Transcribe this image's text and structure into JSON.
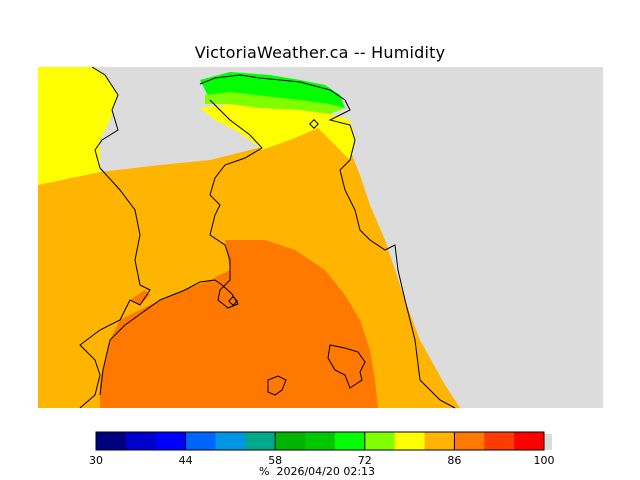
{
  "title": "VictoriaWeather.ca -- Humidity",
  "legend": {
    "unit": "%",
    "timestamp": "2026/04/20 02:13",
    "ticks": [
      "30",
      "44",
      "58",
      "72",
      "86",
      "100"
    ],
    "colors": [
      "#00007f",
      "#0000cd",
      "#0000ff",
      "#0064ff",
      "#0096e6",
      "#00a88c",
      "#00b400",
      "#00c800",
      "#00ff00",
      "#80ff00",
      "#ffff00",
      "#ffb400",
      "#ff7800",
      "#ff3c00",
      "#ff0000"
    ]
  },
  "map_colors": {
    "land_gray": "#dcdcdc",
    "orange_dark": "#ff7800",
    "orange_light": "#ffb400",
    "yellow": "#ffff00",
    "green": "#00ff00",
    "lime": "#80ff00",
    "outline": "#000000"
  }
}
